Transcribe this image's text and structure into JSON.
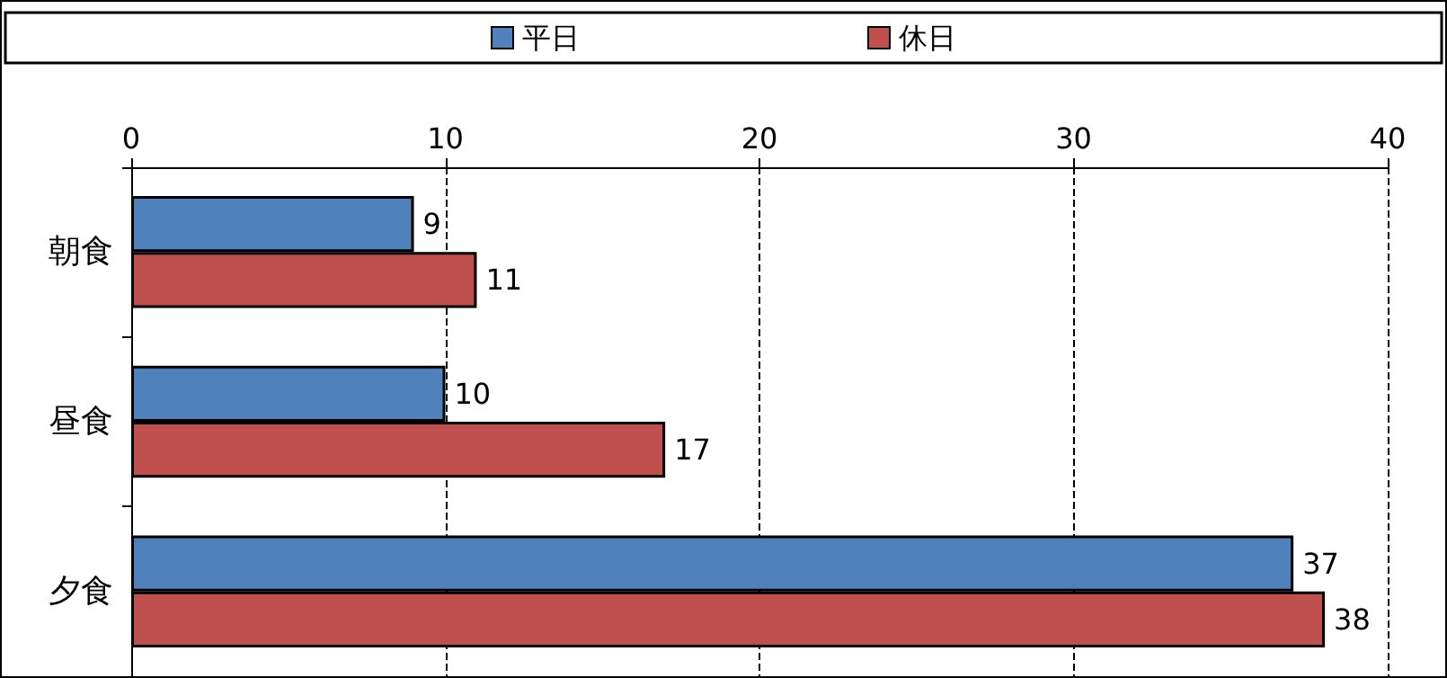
{
  "chart_data": {
    "type": "bar",
    "orientation": "horizontal",
    "categories": [
      "朝食",
      "昼食",
      "夕食"
    ],
    "series": [
      {
        "name": "平日",
        "color": "#4f81bd",
        "values": [
          9,
          10,
          37
        ]
      },
      {
        "name": "休日",
        "color": "#c0504d",
        "values": [
          11,
          17,
          38
        ]
      }
    ],
    "xlim": [
      0,
      40
    ],
    "xticks": [
      0,
      10,
      20,
      30,
      40
    ],
    "grid": "x",
    "legend": "top",
    "data_labels": true
  }
}
